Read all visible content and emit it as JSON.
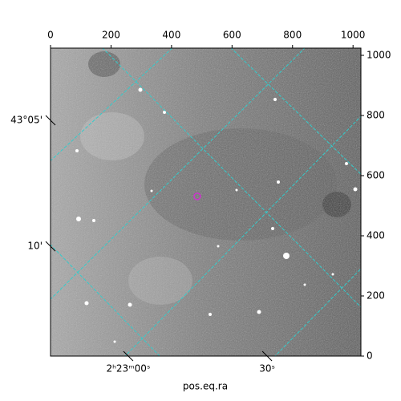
{
  "chart_data": {
    "type": "image",
    "xlabel": "pos.eq.ra",
    "xlim": [
      0,
      1026
    ],
    "ylim": [
      0,
      1024
    ],
    "xticks": [
      0,
      200,
      400,
      600,
      800,
      1000
    ],
    "yticks": [
      0,
      200,
      400,
      600,
      800,
      1000
    ],
    "world_xticks": [
      {
        "value": 257,
        "label": "2ʰ23ᵐ00ˢ"
      },
      {
        "value": 716,
        "label": "30ˢ"
      }
    ],
    "world_yticks": [
      {
        "value": 784,
        "label": "43°05'"
      },
      {
        "value": 365,
        "label": "10'"
      }
    ],
    "grid_color": "#33cccc",
    "markers": [
      {
        "x": 485,
        "y": 531,
        "color": "#cc33cc"
      }
    ]
  }
}
